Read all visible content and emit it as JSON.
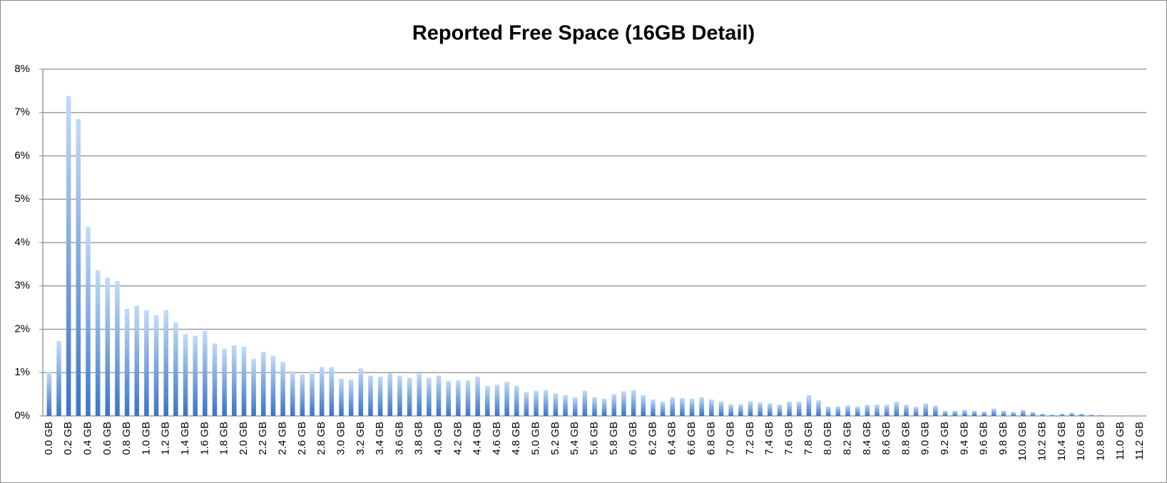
{
  "chart_data": {
    "type": "bar",
    "title": "Reported Free Space (16GB Detail)",
    "categories": [
      "0.0 GB",
      null,
      "0.2 GB",
      null,
      "0.4 GB",
      null,
      "0.6 GB",
      null,
      "0.8 GB",
      null,
      "1.0 GB",
      null,
      "1.2 GB",
      null,
      "1.4 GB",
      null,
      "1.6 GB",
      null,
      "1.8 GB",
      null,
      "2.0 GB",
      null,
      "2.2 GB",
      null,
      "2.4 GB",
      null,
      "2.6 GB",
      null,
      "2.8 GB",
      null,
      "3.0 GB",
      null,
      "3.2 GB",
      null,
      "3.4 GB",
      null,
      "3.6 GB",
      null,
      "3.8 GB",
      null,
      "4.0 GB",
      null,
      "4.2 GB",
      null,
      "4.4 GB",
      null,
      "4.6 GB",
      null,
      "4.8 GB",
      null,
      "5.0 GB",
      null,
      "5.2 GB",
      null,
      "5.4 GB",
      null,
      "5.6 GB",
      null,
      "5.8 GB",
      null,
      "6.0 GB",
      null,
      "6.2 GB",
      null,
      "6.4 GB",
      null,
      "6.6 GB",
      null,
      "6.8 GB",
      null,
      "7.0 GB",
      null,
      "7.2 GB",
      null,
      "7.4 GB",
      null,
      "7.6 GB",
      null,
      "7.8 GB",
      null,
      "8.0 GB",
      null,
      "8.2 GB",
      null,
      "8.4 GB",
      null,
      "8.6 GB",
      null,
      "8.8 GB",
      null,
      "9.0 GB",
      null,
      "9.2 GB",
      null,
      "9.4 GB",
      null,
      "9.6 GB",
      null,
      "9.8 GB",
      null,
      "10.0 GB",
      null,
      "10.2 GB",
      null,
      "10.4 GB",
      null,
      "10.6 GB",
      null,
      "10.8 GB",
      null,
      "11.0 GB",
      null,
      "11.2 GB"
    ],
    "values": [
      1.01,
      1.73,
      7.38,
      6.85,
      4.36,
      3.36,
      3.19,
      3.11,
      2.47,
      2.54,
      2.44,
      2.32,
      2.44,
      2.16,
      1.89,
      1.85,
      1.96,
      1.67,
      1.55,
      1.63,
      1.6,
      1.32,
      1.48,
      1.39,
      1.25,
      1.03,
      0.96,
      1.03,
      1.13,
      1.13,
      0.86,
      0.84,
      1.1,
      0.93,
      0.91,
      0.98,
      0.93,
      0.88,
      0.98,
      0.88,
      0.93,
      0.81,
      0.82,
      0.82,
      0.91,
      0.69,
      0.72,
      0.79,
      0.7,
      0.55,
      0.58,
      0.6,
      0.52,
      0.48,
      0.43,
      0.58,
      0.43,
      0.4,
      0.5,
      0.57,
      0.6,
      0.48,
      0.38,
      0.33,
      0.43,
      0.41,
      0.4,
      0.43,
      0.38,
      0.34,
      0.27,
      0.27,
      0.34,
      0.31,
      0.29,
      0.26,
      0.33,
      0.33,
      0.48,
      0.36,
      0.22,
      0.22,
      0.24,
      0.22,
      0.26,
      0.26,
      0.26,
      0.33,
      0.26,
      0.21,
      0.29,
      0.24,
      0.12,
      0.12,
      0.14,
      0.12,
      0.1,
      0.17,
      0.12,
      0.09,
      0.14,
      0.09,
      0.05,
      0.03,
      0.05,
      0.07,
      0.05,
      0.03,
      0.02,
      0.01,
      0.01,
      0.01,
      0.01
    ],
    "color": "#4a86d6",
    "ylim": [
      0,
      8
    ],
    "yticks": [
      {
        "value": 0,
        "label": "0%"
      },
      {
        "value": 1,
        "label": "1%"
      },
      {
        "value": 2,
        "label": "2%"
      },
      {
        "value": 3,
        "label": "3%"
      },
      {
        "value": 4,
        "label": "4%"
      },
      {
        "value": 5,
        "label": "5%"
      },
      {
        "value": 6,
        "label": "6%"
      },
      {
        "value": 7,
        "label": "7%"
      },
      {
        "value": 8,
        "label": "8%"
      }
    ],
    "grid": true
  }
}
